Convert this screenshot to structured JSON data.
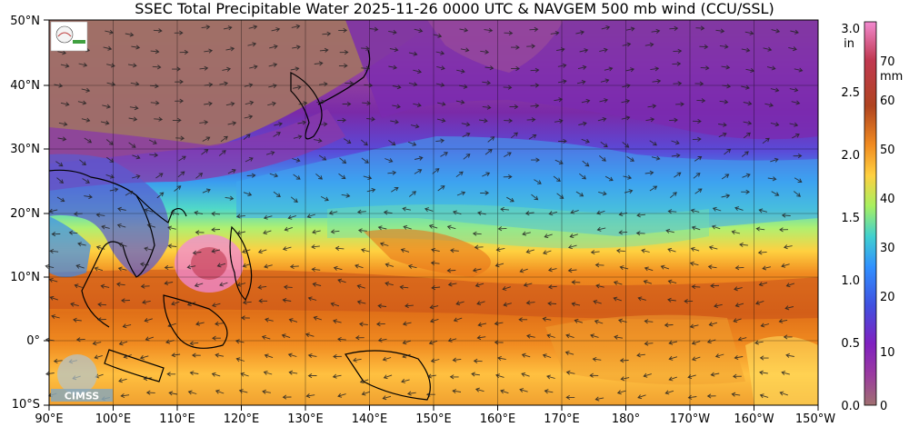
{
  "title": "SSEC Total Precipitable Water  2025-11-26 0000 UTC & NAVGEM 500 mb wind (CCU/SSL)",
  "lat_labels": [
    "50°N",
    "40°N",
    "30°N",
    "20°N",
    "10°N",
    "0°",
    "10°S"
  ],
  "lon_labels": [
    "90°E",
    "100°E",
    "110°E",
    "120°E",
    "130°E",
    "140°E",
    "150°E",
    "160°E",
    "170°E",
    "180°",
    "170°W",
    "160°W",
    "150°W"
  ],
  "colorbar": {
    "in_label": "in",
    "mm_label": "mm",
    "in_ticks": [
      "3.0",
      "2.5",
      "2.0",
      "1.5",
      "1.0",
      "0.5",
      "0.0"
    ],
    "mm_ticks": [
      "70",
      "60",
      "50",
      "40",
      "30",
      "20",
      "10",
      "0"
    ],
    "colors": [
      "#ff66cc",
      "#c03050",
      "#b04020",
      "#f08020",
      "#ffd040",
      "#a0ff80",
      "#30c0ff",
      "#4060ff",
      "#8020c0",
      "#a07070"
    ]
  },
  "logos": {
    "top": "SSEC logo",
    "bottom": "CIMSS"
  }
}
